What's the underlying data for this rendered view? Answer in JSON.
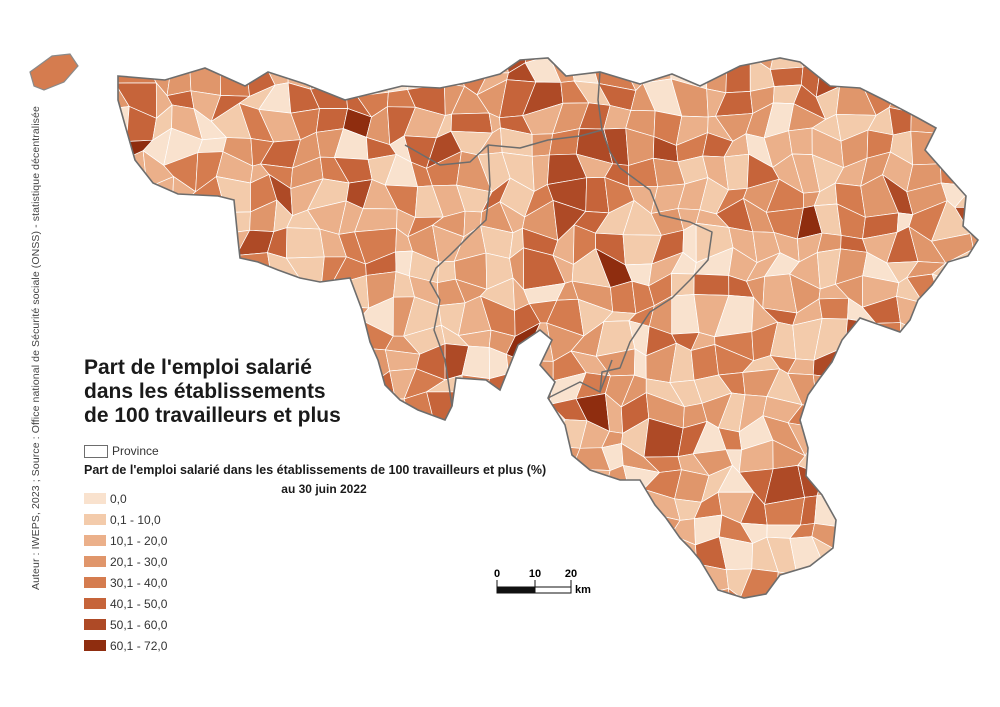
{
  "title_lines": [
    "Part de l'emploi salarié",
    "dans les établissements",
    "de 100 travailleurs et plus"
  ],
  "credit": "Auteur : IWEPS, 2023 ; Source : Office national de Sécurité sociale (ONSS) - statistique décentralisée",
  "legend": {
    "province_label": "Province",
    "heading": "Part de l'emploi salarié dans les établissements de 100 travailleurs et plus (%)",
    "subheading": "au 30 juin 2022",
    "classes": [
      {
        "label": "0,0",
        "color": "#f9e2ce"
      },
      {
        "label": "0,1 - 10,0",
        "color": "#f3cbab"
      },
      {
        "label": "10,1 - 20,0",
        "color": "#ebb08a"
      },
      {
        "label": "20,1 - 30,0",
        "color": "#e0966b"
      },
      {
        "label": "30,1 - 40,0",
        "color": "#d57c4f"
      },
      {
        "label": "40,1 - 50,0",
        "color": "#c6643a"
      },
      {
        "label": "50,1 - 60,0",
        "color": "#ae4a26"
      },
      {
        "label": "60,1 - 72,0",
        "color": "#8f2d0f"
      }
    ]
  },
  "scalebar": {
    "ticks": [
      "0",
      "10",
      "20"
    ],
    "unit": "km"
  }
}
